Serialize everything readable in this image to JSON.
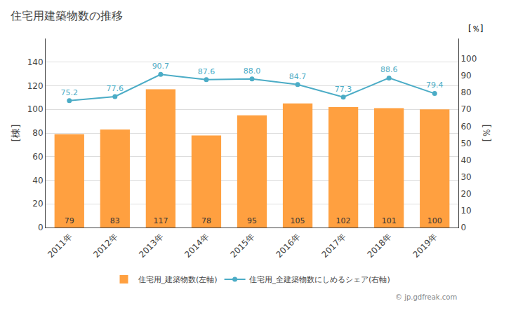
{
  "chart_data": {
    "type": "bar",
    "title": "住宅用建築物数の推移",
    "categories": [
      "2011年",
      "2012年",
      "2013年",
      "2014年",
      "2015年",
      "2016年",
      "2017年",
      "2018年",
      "2019年"
    ],
    "series": [
      {
        "name": "住宅用_建築物数(左軸)",
        "type": "bar",
        "color": "#FFA040",
        "values": [
          79,
          83,
          117,
          78,
          95,
          105,
          102,
          101,
          100
        ],
        "data_labels": true
      },
      {
        "name": "住宅用_全建築物数にしめるシェア(右軸)",
        "type": "line",
        "color": "#4BACC6",
        "axis": "y2",
        "marker": "circle",
        "values": [
          75.2,
          77.6,
          90.7,
          87.6,
          88.0,
          84.7,
          77.3,
          88.6,
          79.4
        ],
        "value_labels": [
          "75.2",
          "77.6",
          "90.7",
          "87.6",
          "88.0",
          "84.7",
          "77.3",
          "88.6",
          "79.4"
        ],
        "data_labels": true
      }
    ],
    "ylabel": "[棟]",
    "y2label": "[％]",
    "ylim": [
      0,
      160
    ],
    "yticks": [
      0,
      20,
      40,
      60,
      80,
      100,
      120,
      140
    ],
    "y2lim": [
      0,
      112
    ],
    "y2ticks": [
      0,
      10,
      20,
      30,
      40,
      50,
      60,
      70,
      80,
      90,
      100
    ],
    "annotations": [
      "[％]",
      "© jp.gdfreak.com"
    ],
    "grid": true,
    "legend": "bottom"
  }
}
